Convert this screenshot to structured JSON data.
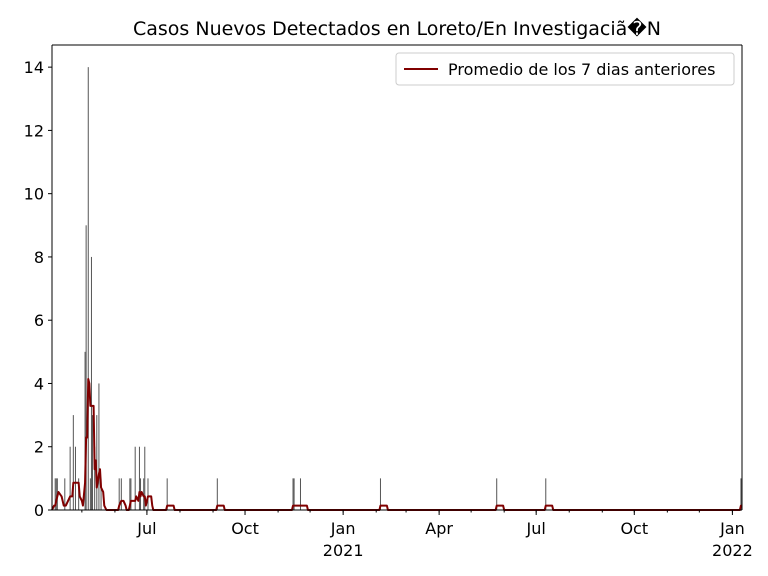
{
  "chart_data": {
    "type": "bar",
    "title": "Casos Nuevos Detectados en Loreto/En Investigaciã�N",
    "xlabel": "",
    "ylabel": "",
    "ylim": [
      0,
      14.7
    ],
    "y_ticks": [
      0,
      2,
      4,
      6,
      8,
      10,
      12,
      14
    ],
    "x_range": [
      "2020-04-03",
      "2022-01-10"
    ],
    "x_ticks": [
      {
        "date": "2020-07-01",
        "label": "Jul",
        "year": ""
      },
      {
        "date": "2020-10-01",
        "label": "Oct",
        "year": ""
      },
      {
        "date": "2021-01-01",
        "label": "Jan",
        "year": "2021"
      },
      {
        "date": "2021-04-01",
        "label": "Apr",
        "year": ""
      },
      {
        "date": "2021-07-01",
        "label": "Jul",
        "year": ""
      },
      {
        "date": "2021-10-01",
        "label": "Oct",
        "year": ""
      },
      {
        "date": "2022-01-01",
        "label": "Jan",
        "year": "2022"
      }
    ],
    "series": [
      {
        "name": "",
        "kind": "bar",
        "color": "#555555",
        "points": [
          {
            "x": "2020-04-06",
            "y": 1
          },
          {
            "x": "2020-04-07",
            "y": 1
          },
          {
            "x": "2020-04-08",
            "y": 1
          },
          {
            "x": "2020-04-15",
            "y": 1
          },
          {
            "x": "2020-04-20",
            "y": 2
          },
          {
            "x": "2020-04-23",
            "y": 3
          },
          {
            "x": "2020-04-25",
            "y": 2
          },
          {
            "x": "2020-04-28",
            "y": 1
          },
          {
            "x": "2020-05-04",
            "y": 5
          },
          {
            "x": "2020-05-05",
            "y": 9
          },
          {
            "x": "2020-05-07",
            "y": 14
          },
          {
            "x": "2020-05-09",
            "y": 1
          },
          {
            "x": "2020-05-10",
            "y": 8
          },
          {
            "x": "2020-05-11",
            "y": 3
          },
          {
            "x": "2020-05-13",
            "y": 2
          },
          {
            "x": "2020-05-15",
            "y": 3
          },
          {
            "x": "2020-05-17",
            "y": 4
          },
          {
            "x": "2020-05-19",
            "y": 1
          },
          {
            "x": "2020-06-05",
            "y": 1
          },
          {
            "x": "2020-06-07",
            "y": 1
          },
          {
            "x": "2020-06-15",
            "y": 1
          },
          {
            "x": "2020-06-16",
            "y": 1
          },
          {
            "x": "2020-06-20",
            "y": 2
          },
          {
            "x": "2020-06-24",
            "y": 2
          },
          {
            "x": "2020-06-25",
            "y": 1
          },
          {
            "x": "2020-06-28",
            "y": 1
          },
          {
            "x": "2020-06-29",
            "y": 2
          },
          {
            "x": "2020-07-02",
            "y": 1
          },
          {
            "x": "2020-07-20",
            "y": 1
          },
          {
            "x": "2020-09-05",
            "y": 1
          },
          {
            "x": "2020-11-15",
            "y": 1
          },
          {
            "x": "2020-11-16",
            "y": 1
          },
          {
            "x": "2020-11-22",
            "y": 1
          },
          {
            "x": "2021-02-05",
            "y": 1
          },
          {
            "x": "2021-05-25",
            "y": 1
          },
          {
            "x": "2021-07-10",
            "y": 1
          },
          {
            "x": "2022-01-09",
            "y": 1
          }
        ]
      },
      {
        "name": "Promedio de los 7 dias anteriores",
        "kind": "line",
        "color": "#800000",
        "points": [
          {
            "x": "2020-04-03",
            "y": 0
          },
          {
            "x": "2020-04-05",
            "y": 0.14
          },
          {
            "x": "2020-04-06",
            "y": 0.14
          },
          {
            "x": "2020-04-07",
            "y": 0.29
          },
          {
            "x": "2020-04-08",
            "y": 0.43
          },
          {
            "x": "2020-04-09",
            "y": 0.57
          },
          {
            "x": "2020-04-12",
            "y": 0.43
          },
          {
            "x": "2020-04-13",
            "y": 0.29
          },
          {
            "x": "2020-04-14",
            "y": 0.14
          },
          {
            "x": "2020-04-15",
            "y": 0.14
          },
          {
            "x": "2020-04-16",
            "y": 0.14
          },
          {
            "x": "2020-04-20",
            "y": 0.43
          },
          {
            "x": "2020-04-22",
            "y": 0.43
          },
          {
            "x": "2020-04-23",
            "y": 0.86
          },
          {
            "x": "2020-04-25",
            "y": 0.86
          },
          {
            "x": "2020-04-28",
            "y": 0.86
          },
          {
            "x": "2020-04-29",
            "y": 0.43
          },
          {
            "x": "2020-05-01",
            "y": 0.29
          },
          {
            "x": "2020-05-02",
            "y": 0.14
          },
          {
            "x": "2020-05-04",
            "y": 0.86
          },
          {
            "x": "2020-05-05",
            "y": 2.29
          },
          {
            "x": "2020-05-06",
            "y": 2.29
          },
          {
            "x": "2020-05-07",
            "y": 4.14
          },
          {
            "x": "2020-05-08",
            "y": 4.0
          },
          {
            "x": "2020-05-09",
            "y": 3.29
          },
          {
            "x": "2020-05-11",
            "y": 3.29
          },
          {
            "x": "2020-05-12",
            "y": 3.29
          },
          {
            "x": "2020-05-13",
            "y": 1.29
          },
          {
            "x": "2020-05-14",
            "y": 1.57
          },
          {
            "x": "2020-05-15",
            "y": 0.71
          },
          {
            "x": "2020-05-17",
            "y": 1.14
          },
          {
            "x": "2020-05-18",
            "y": 1.29
          },
          {
            "x": "2020-05-19",
            "y": 0.71
          },
          {
            "x": "2020-05-21",
            "y": 0.57
          },
          {
            "x": "2020-05-22",
            "y": 0.14
          },
          {
            "x": "2020-05-24",
            "y": 0
          },
          {
            "x": "2020-06-04",
            "y": 0
          },
          {
            "x": "2020-06-05",
            "y": 0.14
          },
          {
            "x": "2020-06-07",
            "y": 0.29
          },
          {
            "x": "2020-06-09",
            "y": 0.29
          },
          {
            "x": "2020-06-11",
            "y": 0.14
          },
          {
            "x": "2020-06-12",
            "y": 0
          },
          {
            "x": "2020-06-14",
            "y": 0
          },
          {
            "x": "2020-06-15",
            "y": 0.14
          },
          {
            "x": "2020-06-16",
            "y": 0.29
          },
          {
            "x": "2020-06-20",
            "y": 0.29
          },
          {
            "x": "2020-06-21",
            "y": 0.43
          },
          {
            "x": "2020-06-23",
            "y": 0.29
          },
          {
            "x": "2020-06-24",
            "y": 0.57
          },
          {
            "x": "2020-06-25",
            "y": 0.43
          },
          {
            "x": "2020-06-26",
            "y": 0.57
          },
          {
            "x": "2020-06-28",
            "y": 0.43
          },
          {
            "x": "2020-06-29",
            "y": 0.43
          },
          {
            "x": "2020-06-30",
            "y": 0.14
          },
          {
            "x": "2020-07-02",
            "y": 0.43
          },
          {
            "x": "2020-07-05",
            "y": 0.43
          },
          {
            "x": "2020-07-06",
            "y": 0.14
          },
          {
            "x": "2020-07-07",
            "y": 0
          },
          {
            "x": "2020-07-19",
            "y": 0
          },
          {
            "x": "2020-07-20",
            "y": 0.14
          },
          {
            "x": "2020-07-26",
            "y": 0.14
          },
          {
            "x": "2020-07-27",
            "y": 0
          },
          {
            "x": "2020-09-04",
            "y": 0
          },
          {
            "x": "2020-09-05",
            "y": 0.14
          },
          {
            "x": "2020-09-11",
            "y": 0.14
          },
          {
            "x": "2020-09-12",
            "y": 0
          },
          {
            "x": "2020-11-14",
            "y": 0
          },
          {
            "x": "2020-11-15",
            "y": 0.14
          },
          {
            "x": "2020-11-28",
            "y": 0.14
          },
          {
            "x": "2020-11-29",
            "y": 0
          },
          {
            "x": "2021-02-04",
            "y": 0
          },
          {
            "x": "2021-02-05",
            "y": 0.14
          },
          {
            "x": "2021-02-11",
            "y": 0.14
          },
          {
            "x": "2021-02-12",
            "y": 0
          },
          {
            "x": "2021-05-24",
            "y": 0
          },
          {
            "x": "2021-05-25",
            "y": 0.14
          },
          {
            "x": "2021-05-31",
            "y": 0.14
          },
          {
            "x": "2021-06-01",
            "y": 0
          },
          {
            "x": "2021-07-09",
            "y": 0
          },
          {
            "x": "2021-07-10",
            "y": 0.14
          },
          {
            "x": "2021-07-16",
            "y": 0.14
          },
          {
            "x": "2021-07-17",
            "y": 0
          },
          {
            "x": "2022-01-08",
            "y": 0
          },
          {
            "x": "2022-01-09",
            "y": 0.14
          },
          {
            "x": "2022-01-10",
            "y": 0.14
          }
        ]
      }
    ],
    "legend": {
      "placement": "top-right"
    },
    "grid": false
  }
}
